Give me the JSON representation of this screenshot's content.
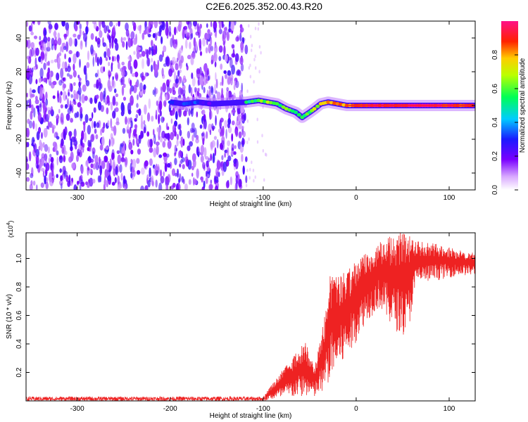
{
  "title": "C2E6.2025.352.00.43.R20",
  "chart_data": [
    {
      "type": "heatmap",
      "name": "spectrogram",
      "xlabel": "Height of straight line (km)",
      "ylabel": "Frequency (Hz)",
      "xlim": [
        -355,
        128
      ],
      "ylim": [
        -50,
        50
      ],
      "xticks": [
        -300,
        -200,
        -100,
        0,
        100
      ],
      "yticks": [
        -40,
        -20,
        0,
        20,
        40
      ],
      "colorbar": {
        "label": "Normalized spectral amplitude",
        "range": [
          0,
          1
        ],
        "ticks": [
          "0.0",
          "0.2",
          "0.4",
          "0.6",
          "0.8"
        ]
      },
      "noise_region_km": [
        -355,
        -118
      ],
      "signal_track": [
        {
          "x": -200,
          "y": 2,
          "amp": 0.25
        },
        {
          "x": -185,
          "y": 1,
          "amp": 0.3
        },
        {
          "x": -170,
          "y": 2,
          "amp": 0.3
        },
        {
          "x": -155,
          "y": 1,
          "amp": 0.25
        },
        {
          "x": -118,
          "y": 2,
          "amp": 0.5
        },
        {
          "x": -105,
          "y": 3,
          "amp": 0.6
        },
        {
          "x": -95,
          "y": 2,
          "amp": 0.65
        },
        {
          "x": -85,
          "y": 1,
          "amp": 0.6
        },
        {
          "x": -75,
          "y": -2,
          "amp": 0.6
        },
        {
          "x": -65,
          "y": -4,
          "amp": 0.6
        },
        {
          "x": -58,
          "y": -7,
          "amp": 0.55
        },
        {
          "x": -50,
          "y": -4,
          "amp": 0.6
        },
        {
          "x": -45,
          "y": -2,
          "amp": 0.65
        },
        {
          "x": -38,
          "y": 1,
          "amp": 0.7
        },
        {
          "x": -30,
          "y": 2,
          "amp": 0.8
        },
        {
          "x": -20,
          "y": 1,
          "amp": 0.8
        },
        {
          "x": -10,
          "y": 0,
          "amp": 0.85
        },
        {
          "x": 0,
          "y": 0,
          "amp": 0.9
        },
        {
          "x": 20,
          "y": 0,
          "amp": 0.95
        },
        {
          "x": 40,
          "y": 0,
          "amp": 0.95
        },
        {
          "x": 60,
          "y": 0,
          "amp": 1.0
        },
        {
          "x": 80,
          "y": 0,
          "amp": 0.95
        },
        {
          "x": 100,
          "y": 0,
          "amp": 0.9
        },
        {
          "x": 128,
          "y": 0,
          "amp": 0.9
        }
      ]
    },
    {
      "type": "line",
      "name": "snr",
      "xlabel": "Height of straight line (km)",
      "ylabel": "SNR (10 * v/v)",
      "yscale_label": "(x10",
      "yscale_exp": "4",
      "yscale_close": ")",
      "xlim": [
        -355,
        128
      ],
      "ylim": [
        0,
        1.18
      ],
      "xticks": [
        -300,
        -200,
        -100,
        0,
        100
      ],
      "yticks": [
        0.2,
        0.4,
        0.6,
        0.8,
        1.0
      ],
      "ytick_labels": [
        "0.2",
        "0.4",
        "0.6",
        "0.8",
        "1.0"
      ],
      "color": "#ee2222",
      "envelope": [
        {
          "x": -355,
          "low": 0.0,
          "high": 0.03
        },
        {
          "x": -100,
          "low": 0.0,
          "high": 0.03
        },
        {
          "x": -90,
          "low": 0.01,
          "high": 0.12
        },
        {
          "x": -70,
          "low": 0.02,
          "high": 0.3
        },
        {
          "x": -55,
          "low": 0.03,
          "high": 0.42
        },
        {
          "x": -45,
          "low": 0.02,
          "high": 0.25
        },
        {
          "x": -35,
          "low": 0.05,
          "high": 0.55
        },
        {
          "x": -28,
          "low": 0.15,
          "high": 0.88
        },
        {
          "x": -15,
          "low": 0.25,
          "high": 0.9
        },
        {
          "x": -5,
          "low": 0.35,
          "high": 0.95
        },
        {
          "x": 10,
          "low": 0.55,
          "high": 1.05
        },
        {
          "x": 25,
          "low": 0.65,
          "high": 1.12
        },
        {
          "x": 40,
          "low": 0.5,
          "high": 1.18
        },
        {
          "x": 55,
          "low": 0.45,
          "high": 1.18
        },
        {
          "x": 65,
          "low": 0.82,
          "high": 1.12
        },
        {
          "x": 90,
          "low": 0.85,
          "high": 1.1
        },
        {
          "x": 110,
          "low": 0.88,
          "high": 1.06
        },
        {
          "x": 128,
          "low": 0.88,
          "high": 1.04
        }
      ]
    }
  ]
}
